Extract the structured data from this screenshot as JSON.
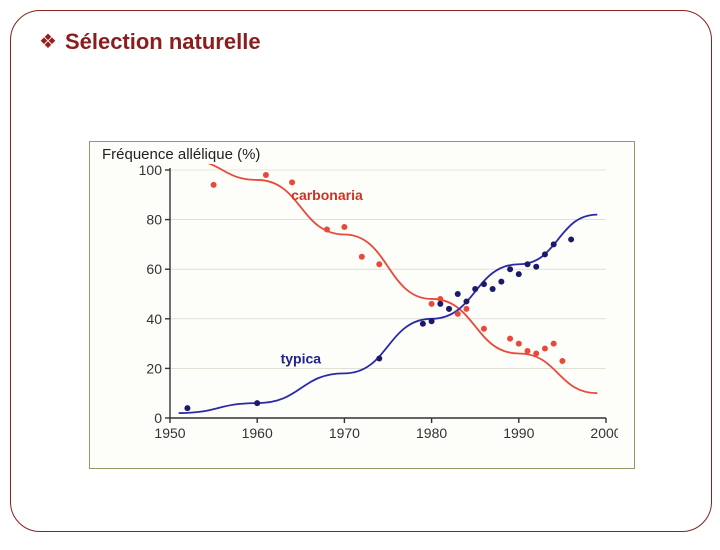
{
  "title": "Sélection naturelle",
  "chart": {
    "type": "scatter+line",
    "y_title": "Fréquence allélique (%)",
    "xlim": [
      1950,
      2000
    ],
    "ylim": [
      0,
      100
    ],
    "xticks": [
      1950,
      1960,
      1970,
      1980,
      1990,
      2000
    ],
    "yticks": [
      0,
      20,
      40,
      60,
      80,
      100
    ],
    "background_color": "#fdfdf9",
    "border_color": "#999966",
    "axis_color": "#333333",
    "grid_color": "#cfcfbf",
    "tick_fontsize": 14,
    "title_fontsize": 15,
    "marker_radius": 3.0,
    "line_width": 1.8,
    "series": [
      {
        "name": "carbonaria",
        "color": "#e84a3a",
        "label_pos": {
          "x": 1968,
          "y": 88
        },
        "points": [
          {
            "x": 1955,
            "y": 94
          },
          {
            "x": 1961,
            "y": 98
          },
          {
            "x": 1964,
            "y": 95
          },
          {
            "x": 1968,
            "y": 76
          },
          {
            "x": 1970,
            "y": 77
          },
          {
            "x": 1972,
            "y": 65
          },
          {
            "x": 1974,
            "y": 62
          },
          {
            "x": 1980,
            "y": 46
          },
          {
            "x": 1981,
            "y": 48
          },
          {
            "x": 1982,
            "y": 44
          },
          {
            "x": 1983,
            "y": 42
          },
          {
            "x": 1984,
            "y": 44
          },
          {
            "x": 1986,
            "y": 36
          },
          {
            "x": 1989,
            "y": 32
          },
          {
            "x": 1990,
            "y": 30
          },
          {
            "x": 1991,
            "y": 27
          },
          {
            "x": 1992,
            "y": 26
          },
          {
            "x": 1993,
            "y": 28
          },
          {
            "x": 1994,
            "y": 30
          },
          {
            "x": 1995,
            "y": 23
          }
        ],
        "curve": [
          {
            "x": 1952,
            "y": 104
          },
          {
            "x": 1960,
            "y": 96
          },
          {
            "x": 1970,
            "y": 74
          },
          {
            "x": 1980,
            "y": 48
          },
          {
            "x": 1990,
            "y": 26
          },
          {
            "x": 1999,
            "y": 10
          }
        ]
      },
      {
        "name": "typica",
        "color": "#2a2aa8",
        "point_color": "#1a1a6b",
        "label_pos": {
          "x": 1965,
          "y": 22
        },
        "points": [
          {
            "x": 1952,
            "y": 4
          },
          {
            "x": 1960,
            "y": 6
          },
          {
            "x": 1974,
            "y": 24
          },
          {
            "x": 1979,
            "y": 38
          },
          {
            "x": 1980,
            "y": 39
          },
          {
            "x": 1981,
            "y": 46
          },
          {
            "x": 1982,
            "y": 44
          },
          {
            "x": 1983,
            "y": 50
          },
          {
            "x": 1984,
            "y": 47
          },
          {
            "x": 1985,
            "y": 52
          },
          {
            "x": 1986,
            "y": 54
          },
          {
            "x": 1987,
            "y": 52
          },
          {
            "x": 1988,
            "y": 55
          },
          {
            "x": 1989,
            "y": 60
          },
          {
            "x": 1990,
            "y": 58
          },
          {
            "x": 1991,
            "y": 62
          },
          {
            "x": 1992,
            "y": 61
          },
          {
            "x": 1993,
            "y": 66
          },
          {
            "x": 1994,
            "y": 70
          },
          {
            "x": 1996,
            "y": 72
          }
        ],
        "curve": [
          {
            "x": 1951,
            "y": 2
          },
          {
            "x": 1960,
            "y": 6
          },
          {
            "x": 1970,
            "y": 18
          },
          {
            "x": 1980,
            "y": 40
          },
          {
            "x": 1990,
            "y": 62
          },
          {
            "x": 1999,
            "y": 82
          }
        ]
      }
    ]
  }
}
